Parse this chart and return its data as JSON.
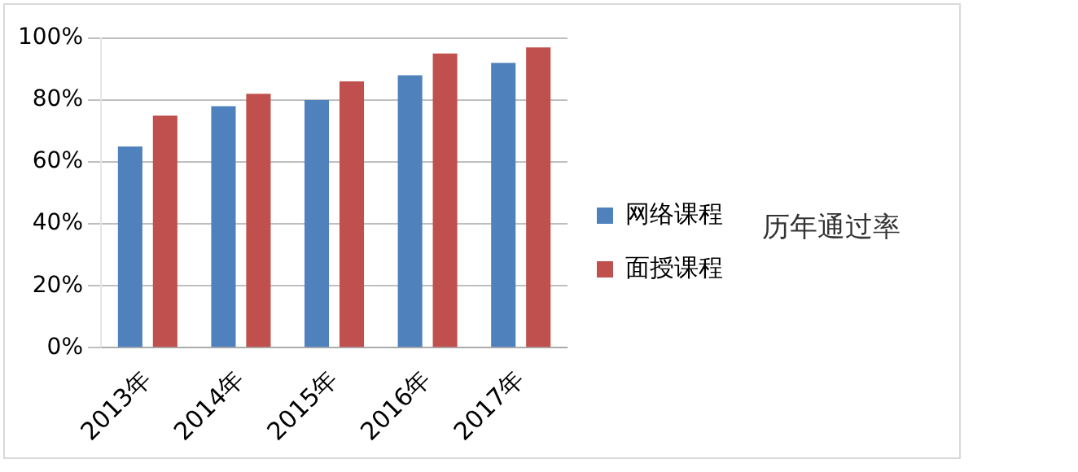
{
  "chart_data": {
    "type": "bar",
    "title": "历年通过率",
    "categories": [
      "2013年",
      "2014年",
      "2015年",
      "2016年",
      "2017年"
    ],
    "series": [
      {
        "name": "网络课程",
        "color": "#4f81bd",
        "values": [
          65,
          78,
          80,
          88,
          92
        ]
      },
      {
        "name": "面授课程",
        "color": "#c0504d",
        "values": [
          75,
          82,
          86,
          95,
          97
        ]
      }
    ],
    "ylim": [
      0,
      100
    ],
    "yticks": [
      {
        "value": 0,
        "label": "0%"
      },
      {
        "value": 20,
        "label": "20%"
      },
      {
        "value": 40,
        "label": "40%"
      },
      {
        "value": 60,
        "label": "60%"
      },
      {
        "value": 80,
        "label": "80%"
      },
      {
        "value": 100,
        "label": "100%"
      }
    ],
    "grid": "y",
    "legend": "right"
  }
}
